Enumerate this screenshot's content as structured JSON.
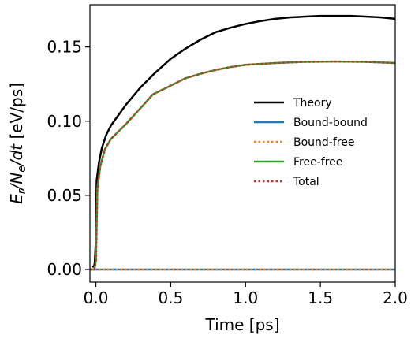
{
  "chart_data": {
    "type": "line",
    "xlabel": "Time [ps]",
    "ylabel_parts": [
      "E",
      "r",
      "/N",
      "e",
      "/dt",
      " [eV/ps]"
    ],
    "xlim": [
      -0.04,
      2.0
    ],
    "ylim": [
      -0.0085,
      0.1785
    ],
    "xticks": [
      0.0,
      0.5,
      1.0,
      1.5,
      2.0
    ],
    "xtick_labels": [
      "0.0",
      "0.5",
      "1.0",
      "1.5",
      "2.0"
    ],
    "yticks": [
      0.0,
      0.05,
      0.1,
      0.15
    ],
    "ytick_labels": [
      "0.00",
      "0.05",
      "0.10",
      "0.15"
    ],
    "grid": false,
    "legend_position": "center-right",
    "series": [
      {
        "name": "Theory",
        "color": "#000000",
        "dash": "solid",
        "x": [
          -0.03,
          -0.015,
          -0.008,
          0.0,
          0.005,
          0.01,
          0.02,
          0.04,
          0.07,
          0.1,
          0.15,
          0.2,
          0.3,
          0.4,
          0.5,
          0.6,
          0.7,
          0.8,
          0.9,
          1.0,
          1.1,
          1.2,
          1.3,
          1.4,
          1.5,
          1.6,
          1.7,
          1.8,
          1.9,
          2.0
        ],
        "y": [
          0.002,
          0.002,
          0.004,
          0.02,
          0.06,
          0.064,
          0.072,
          0.082,
          0.091,
          0.097,
          0.104,
          0.111,
          0.123,
          0.133,
          0.142,
          0.149,
          0.155,
          0.16,
          0.163,
          0.1655,
          0.1675,
          0.169,
          0.17,
          0.1705,
          0.171,
          0.171,
          0.171,
          0.1705,
          0.17,
          0.169
        ]
      },
      {
        "name": "Bound-bound",
        "color": "#1f77b4",
        "dash": "solid",
        "x": [
          -0.04,
          2.0
        ],
        "y": [
          0.0,
          0.0
        ]
      },
      {
        "name": "Bound-free",
        "color": "#ff7f0e",
        "dash": "dotted",
        "x": [
          -0.04,
          2.0
        ],
        "y": [
          0.0,
          0.0
        ]
      },
      {
        "name": "Free-free",
        "color": "#2ca02c",
        "dash": "solid",
        "x": [
          -0.04,
          -0.01,
          0.0,
          0.005,
          0.01,
          0.03,
          0.06,
          0.1,
          0.2,
          0.3,
          0.38,
          0.5,
          0.6,
          0.7,
          0.8,
          0.9,
          1.0,
          1.2,
          1.4,
          1.6,
          1.8,
          2.0
        ],
        "y": [
          0.0,
          0.0,
          0.006,
          0.03,
          0.055,
          0.07,
          0.081,
          0.088,
          0.098,
          0.109,
          0.118,
          0.124,
          0.129,
          0.132,
          0.1345,
          0.1365,
          0.138,
          0.1392,
          0.14,
          0.1402,
          0.14,
          0.1392
        ]
      },
      {
        "name": "Total",
        "color": "#d62728",
        "dash": "dotted",
        "x": [
          -0.04,
          -0.01,
          0.0,
          0.005,
          0.01,
          0.03,
          0.06,
          0.1,
          0.2,
          0.3,
          0.38,
          0.5,
          0.6,
          0.7,
          0.8,
          0.9,
          1.0,
          1.2,
          1.4,
          1.6,
          1.8,
          2.0
        ],
        "y": [
          0.0,
          0.0,
          0.006,
          0.03,
          0.055,
          0.07,
          0.081,
          0.088,
          0.098,
          0.109,
          0.118,
          0.124,
          0.129,
          0.132,
          0.1345,
          0.1365,
          0.138,
          0.1392,
          0.14,
          0.1402,
          0.14,
          0.1392
        ]
      }
    ]
  }
}
